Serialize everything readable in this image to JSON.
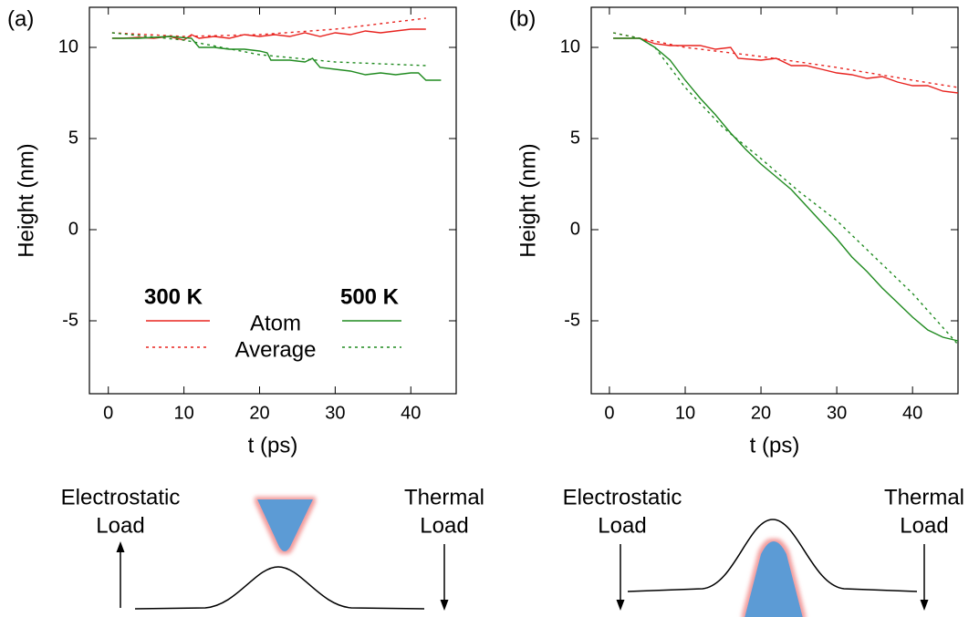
{
  "chart_data": [
    {
      "type": "line",
      "panel_label": "(a)",
      "xlabel": "t (ps)",
      "ylabel": "Height (nm)",
      "xlim": [
        -2.5,
        46
      ],
      "ylim": [
        -9,
        12.2
      ],
      "xticks": [
        0,
        10,
        20,
        30,
        40
      ],
      "yticks": [
        -5,
        0,
        5,
        10
      ],
      "legend": {
        "columns": [
          "300 K",
          "500 K"
        ],
        "rows": [
          "Atom",
          "Average"
        ]
      },
      "series": [
        {
          "color": "#e8231f",
          "dashed": false,
          "x": [
            0.5,
            2,
            4,
            6,
            8,
            10,
            11,
            12,
            14,
            16,
            18,
            20,
            22,
            24,
            26,
            28,
            30,
            32,
            34,
            36,
            38,
            40,
            42
          ],
          "values": [
            10.5,
            10.5,
            10.55,
            10.5,
            10.6,
            10.4,
            10.7,
            10.5,
            10.6,
            10.5,
            10.7,
            10.6,
            10.7,
            10.6,
            10.8,
            10.6,
            10.8,
            10.7,
            10.9,
            10.8,
            10.9,
            11.0,
            11.0
          ]
        },
        {
          "color": "#e8231f",
          "dashed": true,
          "x": [
            0.5,
            10,
            20,
            30,
            42
          ],
          "values": [
            10.8,
            10.6,
            10.7,
            11.0,
            11.6
          ]
        },
        {
          "color": "#1f8a1f",
          "dashed": false,
          "x": [
            0.5,
            4,
            8,
            11,
            12,
            14,
            16,
            18,
            20,
            21,
            21.5,
            24,
            26,
            27,
            28,
            30,
            32,
            34,
            36,
            38,
            40,
            41,
            42,
            44
          ],
          "values": [
            10.5,
            10.5,
            10.6,
            10.5,
            10.0,
            10.0,
            9.9,
            9.9,
            9.8,
            9.7,
            9.3,
            9.3,
            9.2,
            9.4,
            8.9,
            8.8,
            8.7,
            8.5,
            8.6,
            8.5,
            8.6,
            8.6,
            8.2,
            8.2
          ]
        },
        {
          "color": "#1f8a1f",
          "dashed": true,
          "x": [
            0.5,
            10,
            20,
            30,
            42
          ],
          "values": [
            10.8,
            10.4,
            9.6,
            9.2,
            9.0
          ]
        }
      ]
    },
    {
      "type": "line",
      "panel_label": "(b)",
      "xlabel": "t (ps)",
      "ylabel": "Height (nm)",
      "xlim": [
        -2.4,
        46
      ],
      "ylim": [
        -9,
        12.2
      ],
      "xticks": [
        0,
        10,
        20,
        30,
        40
      ],
      "yticks": [
        -5,
        0,
        5,
        10
      ],
      "series": [
        {
          "color": "#e8231f",
          "dashed": false,
          "x": [
            0.5,
            4,
            6,
            8,
            12,
            14,
            16,
            17,
            20,
            22,
            24,
            26,
            28,
            30,
            32,
            34,
            36,
            38,
            40,
            42,
            44,
            46
          ],
          "values": [
            10.5,
            10.5,
            10.2,
            10.1,
            10.1,
            9.9,
            10.0,
            9.4,
            9.3,
            9.4,
            9.0,
            9.0,
            8.8,
            8.6,
            8.5,
            8.3,
            8.4,
            8.1,
            7.9,
            7.9,
            7.6,
            7.5
          ]
        },
        {
          "color": "#e8231f",
          "dashed": true,
          "x": [
            0.5,
            10,
            20,
            30,
            40,
            46
          ],
          "values": [
            10.8,
            10.0,
            9.5,
            8.9,
            8.2,
            7.8
          ]
        },
        {
          "color": "#1f8a1f",
          "dashed": false,
          "x": [
            0.5,
            4,
            6,
            8,
            10,
            12,
            14,
            16,
            18,
            20,
            22,
            24,
            26,
            28,
            30,
            32,
            34,
            36,
            38,
            40,
            42,
            44,
            46
          ],
          "values": [
            10.5,
            10.5,
            10.0,
            9.3,
            8.2,
            7.2,
            6.3,
            5.3,
            4.4,
            3.6,
            2.9,
            2.2,
            1.3,
            0.4,
            -0.5,
            -1.5,
            -2.3,
            -3.2,
            -4.0,
            -4.8,
            -5.5,
            -5.9,
            -6.1
          ]
        },
        {
          "color": "#1f8a1f",
          "dashed": true,
          "x": [
            0.5,
            4,
            6,
            10,
            15,
            20,
            25,
            30,
            35,
            40,
            46
          ],
          "values": [
            10.8,
            10.5,
            10.0,
            7.8,
            5.6,
            3.9,
            2.1,
            0.5,
            -1.5,
            -3.5,
            -6.3
          ]
        }
      ]
    }
  ],
  "diagrams": [
    {
      "left_label": [
        "Electrostatic",
        "Load"
      ],
      "right_label": [
        "Thermal",
        "Load"
      ]
    },
    {
      "left_label": [
        "Electrostatic",
        "Load"
      ],
      "right_label": [
        "Thermal",
        "Load"
      ]
    }
  ]
}
